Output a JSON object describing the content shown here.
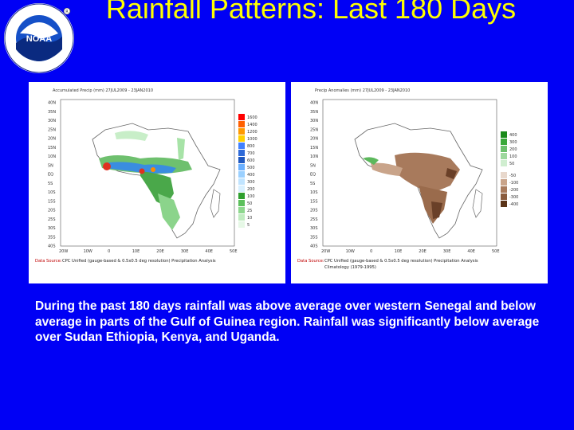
{
  "logo": {
    "name": "noaa-logo",
    "wordmark": "NOAA",
    "ring_text_top": "NATIONAL OCEANIC AND ATMOSPHERIC ADMINISTRATION",
    "ring_text_bottom": "U.S. DEPARTMENT OF COMMERCE"
  },
  "slide": {
    "title": "Rainfall Patterns: Last 180 Days",
    "caption": "During the past 180 days rainfall was above average over western Senegal and below average in parts of the Gulf of Guinea region.  Rainfall was significantly below average over Sudan Ethiopia, Kenya, and Uganda.",
    "colors": {
      "background": "#0000f5",
      "title": "#ffff00",
      "caption": "#ffffff"
    }
  },
  "left_map": {
    "header": "Accumulated Precip (mm) 27JUL2009 - 23JAN2010",
    "lat_labels": [
      "40N",
      "35N",
      "30N",
      "25N",
      "20N",
      "15N",
      "10N",
      "5N",
      "EQ",
      "5S",
      "10S",
      "15S",
      "20S",
      "25S",
      "30S",
      "35S",
      "40S"
    ],
    "lon_labels": [
      "20W",
      "10W",
      "0",
      "10E",
      "20E",
      "30E",
      "40E",
      "50E"
    ],
    "legend": [
      "1600",
      "1400",
      "1200",
      "1000",
      "800",
      "700",
      "600",
      "500",
      "400",
      "300",
      "200",
      "100",
      "50",
      "25",
      "10",
      "5"
    ],
    "footer_label": "Data Source:",
    "footer_text": "CPC Unified (gauge-based & 0.5x0.5 deg resolution) Precipitation Analysis"
  },
  "right_map": {
    "header": "Precip Anomalies (mm) 27JUL2009 - 23JAN2010",
    "lat_labels": [
      "40N",
      "35N",
      "30N",
      "25N",
      "20N",
      "15N",
      "10N",
      "5N",
      "EQ",
      "5S",
      "10S",
      "15S",
      "20S",
      "25S",
      "30S",
      "35S",
      "40S"
    ],
    "lon_labels": [
      "20W",
      "10W",
      "0",
      "10E",
      "20E",
      "30E",
      "40E",
      "50E"
    ],
    "legend": [
      "400",
      "300",
      "200",
      "100",
      "50",
      "-50",
      "-100",
      "-200",
      "-300",
      "-400"
    ],
    "footer_label": "Data Source:",
    "footer_text": "CPC Unified (gauge-based & 0.5x0.5 deg resolution) Precipitation Analysis",
    "footer_text2": "Climatology (1979-1995)"
  }
}
